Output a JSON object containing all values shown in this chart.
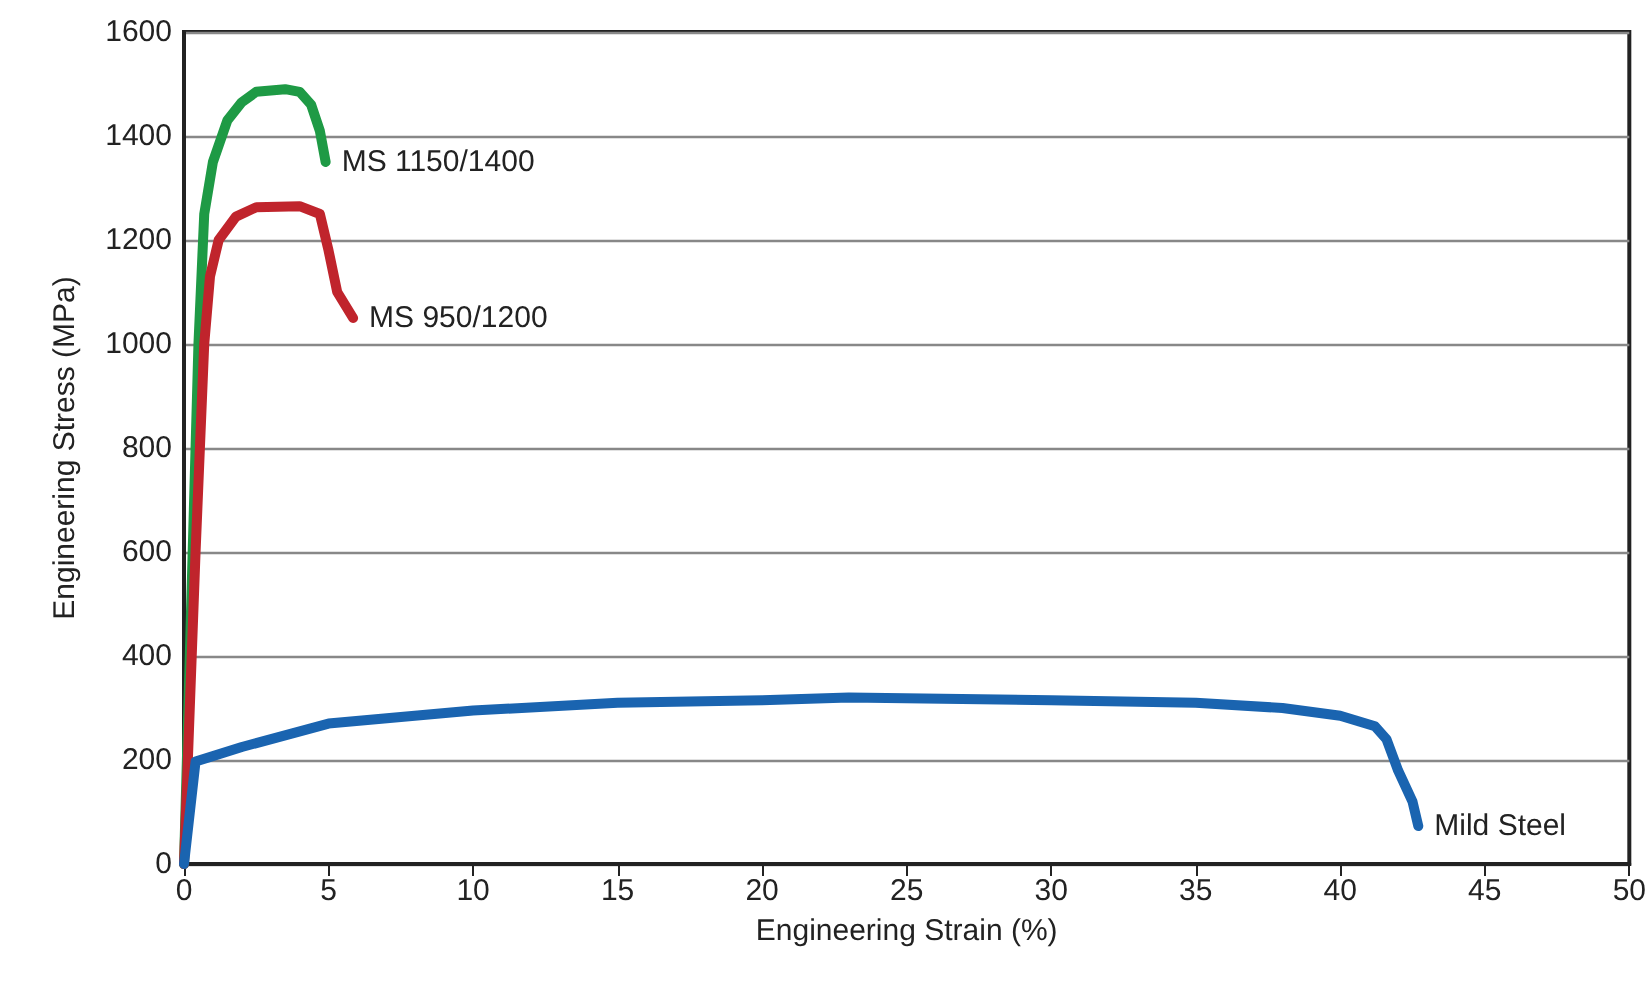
{
  "chart_data": {
    "type": "line",
    "xlabel": "Engineering Strain (%)",
    "ylabel": "Engineering Stress (MPa)",
    "xlim": [
      0,
      50
    ],
    "xticks": [
      0,
      5,
      10,
      15,
      20,
      25,
      30,
      35,
      40,
      45,
      50
    ],
    "ylim": [
      0,
      1600
    ],
    "yticks": [
      0,
      200,
      400,
      600,
      800,
      1000,
      1200,
      1400,
      1600
    ],
    "grid": "y",
    "legend": false,
    "marker": "none",
    "line_style": "solid",
    "series": [
      {
        "name": "MS 1150/1400",
        "color": "#1e9a45",
        "x": [
          0,
          0.3,
          0.5,
          0.7,
          1.0,
          1.5,
          2,
          2.5,
          3.5,
          4,
          4.4,
          4.7,
          4.9
        ],
        "values": [
          0,
          600,
          1000,
          1250,
          1350,
          1430,
          1465,
          1485,
          1490,
          1485,
          1460,
          1410,
          1350
        ]
      },
      {
        "name": "MS 950/1200",
        "color": "#c0242c",
        "x": [
          0,
          0.4,
          0.7,
          0.9,
          1.2,
          1.8,
          2.5,
          4,
          4.7,
          5,
          5.3,
          5.85
        ],
        "values": [
          0,
          600,
          1000,
          1130,
          1200,
          1245,
          1263,
          1265,
          1250,
          1180,
          1100,
          1050
        ]
      },
      {
        "name": "Mild Steel",
        "color": "#1a64b0",
        "x": [
          0,
          0.4,
          2,
          5,
          10,
          15,
          20,
          23,
          30,
          35,
          38,
          40,
          41.2,
          41.6,
          42,
          42.5,
          42.7
        ],
        "values": [
          0,
          197,
          225,
          270,
          295,
          310,
          315,
          320,
          315,
          310,
          300,
          285,
          265,
          240,
          180,
          120,
          73
        ]
      }
    ]
  }
}
